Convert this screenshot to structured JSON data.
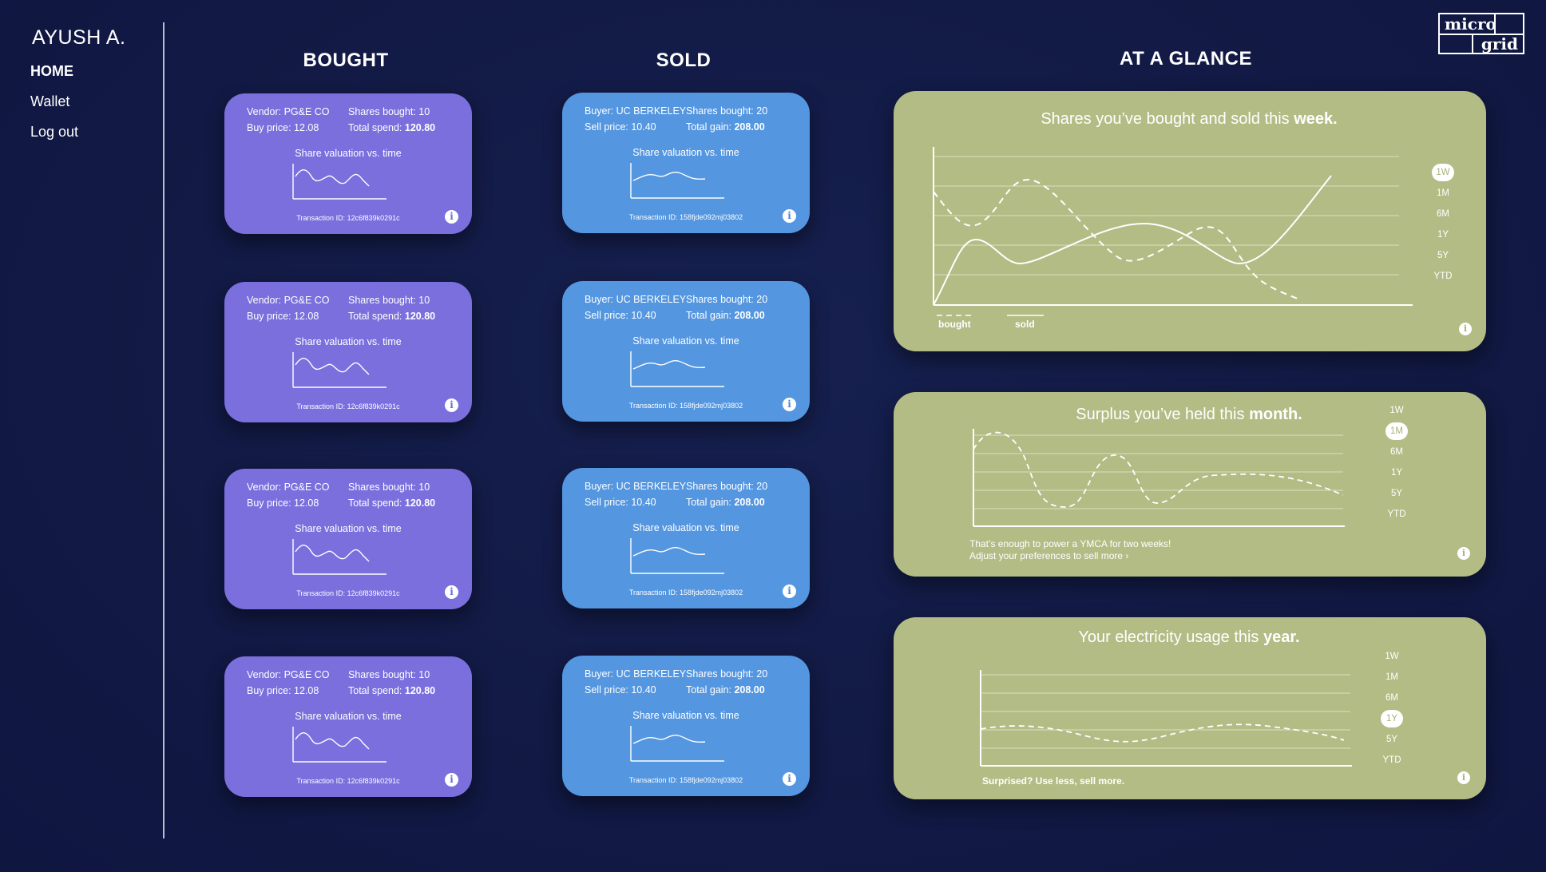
{
  "user": {
    "name": "AYUSH A."
  },
  "nav": {
    "home": "HOME",
    "wallet": "Wallet",
    "logout": "Log out"
  },
  "logo": {
    "line1": "micro",
    "line2": "grid"
  },
  "columns": {
    "bought": "BOUGHT",
    "sold": "SOLD",
    "glance": "AT A GLANCE"
  },
  "bought_cards": [
    {
      "vendor": "Vendor: PG&E CO",
      "shares": "Shares bought: 10",
      "price": "Buy price: 12.08",
      "total_label": "Total spend:",
      "total_value": "120.80",
      "chart_title": "Share valuation vs. time",
      "txid": "Transaction ID: 12c6f839k0291c"
    },
    {
      "vendor": "Vendor: PG&E CO",
      "shares": "Shares bought: 10",
      "price": "Buy price: 12.08",
      "total_label": "Total spend:",
      "total_value": "120.80",
      "chart_title": "Share valuation vs. time",
      "txid": "Transaction ID: 12c6f839k0291c"
    },
    {
      "vendor": "Vendor: PG&E CO",
      "shares": "Shares bought: 10",
      "price": "Buy price: 12.08",
      "total_label": "Total spend:",
      "total_value": "120.80",
      "chart_title": "Share valuation vs. time",
      "txid": "Transaction ID: 12c6f839k0291c"
    },
    {
      "vendor": "Vendor: PG&E CO",
      "shares": "Shares bought: 10",
      "price": "Buy price: 12.08",
      "total_label": "Total spend:",
      "total_value": "120.80",
      "chart_title": "Share valuation vs. time",
      "txid": "Transaction ID: 12c6f839k0291c"
    }
  ],
  "sold_cards": [
    {
      "buyer": "Buyer: UC BERKELEY",
      "shares": "Shares bought: 20",
      "price": "Sell price: 10.40",
      "total_label": "Total gain:",
      "total_value": "208.00",
      "chart_title": "Share valuation vs. time",
      "txid": "Transaction ID: 158fjde092mj03802"
    },
    {
      "buyer": "Buyer: UC BERKELEY",
      "shares": "Shares bought: 20",
      "price": "Sell price: 10.40",
      "total_label": "Total gain:",
      "total_value": "208.00",
      "chart_title": "Share valuation vs. time",
      "txid": "Transaction ID: 158fjde092mj03802"
    },
    {
      "buyer": "Buyer: UC BERKELEY",
      "shares": "Shares bought: 20",
      "price": "Sell price: 10.40",
      "total_label": "Total gain:",
      "total_value": "208.00",
      "chart_title": "Share valuation vs. time",
      "txid": "Transaction ID: 158fjde092mj03802"
    },
    {
      "buyer": "Buyer: UC BERKELEY",
      "shares": "Shares bought: 20",
      "price": "Sell price: 10.40",
      "total_label": "Total gain:",
      "total_value": "208.00",
      "chart_title": "Share valuation vs. time",
      "txid": "Transaction ID: 158fjde092mj03802"
    }
  ],
  "glance": {
    "week": {
      "title_prefix": "Shares you’ve bought and sold this",
      "title_bold": "week.",
      "ranges": [
        "1W",
        "1M",
        "6M",
        "1Y",
        "5Y",
        "YTD"
      ],
      "selected": "1W",
      "legend": {
        "bought": "bought",
        "sold": "sold"
      }
    },
    "month": {
      "title_prefix": "Surplus you’ve held this",
      "title_bold": "month.",
      "ranges": [
        "1W",
        "1M",
        "6M",
        "1Y",
        "5Y",
        "YTD"
      ],
      "selected": "1M",
      "note_line1": "That’s enough to power a YMCA for two weeks!",
      "note_line2": "Adjust your preferences to sell more ›"
    },
    "year": {
      "title_prefix": "Your electricity usage this",
      "title_bold": "year.",
      "ranges": [
        "1W",
        "1M",
        "6M",
        "1Y",
        "5Y",
        "YTD"
      ],
      "selected": "1Y",
      "note": "Surprised? Use less, sell more."
    }
  },
  "colors": {
    "background": "#121a45",
    "bought_card": "#7a6fdd",
    "sold_card": "#5496e0",
    "glance_panel": "#b3bc85"
  },
  "icons": {
    "info": "info-icon"
  }
}
